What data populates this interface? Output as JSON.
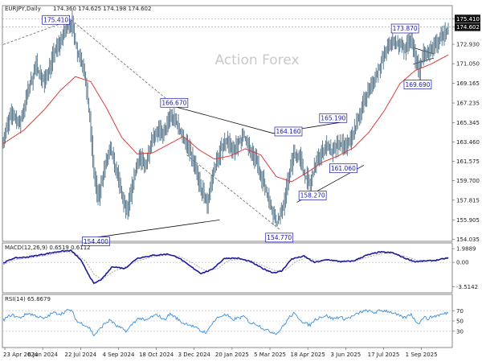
{
  "chart_data": {
    "type": "line",
    "watermark": "Action Forex",
    "header": {
      "symbol_timeframe": "EURJPY,Daily",
      "ohlc": "174.360 174.625 174.198 174.602"
    },
    "x_tick_labels": [
      "23 Apr 2024",
      "6 Jun 2024",
      "22 Jul 2024",
      "4 Sep 2024",
      "18 Oct 2024",
      "3 Dec 2024",
      "20 Jan 2025",
      "5 Mar 2025",
      "18 Apr 2025",
      "3 Jun 2025",
      "17 Jul 2025",
      "1 Sep 2025"
    ],
    "price_panel": {
      "ylim": [
        153.9,
        176.6
      ],
      "y_tick_labels": [
        "175.410",
        "174.602",
        "172.930",
        "171.050",
        "169.165",
        "167.235",
        "165.345",
        "163.460",
        "161.575",
        "159.700",
        "157.815",
        "155.905",
        "154.035"
      ],
      "y_ticks": [
        175.41,
        174.602,
        172.93,
        171.05,
        169.165,
        167.235,
        165.345,
        163.46,
        161.575,
        159.7,
        157.815,
        155.905,
        154.035
      ],
      "highlighted_levels": [
        175.41,
        174.602
      ],
      "annotations": [
        {
          "text": "175.410",
          "bar": 66,
          "value": 175.41
        },
        {
          "text": "154.400",
          "bar": 90,
          "value": 154.4
        },
        {
          "text": "166.670",
          "bar": 166,
          "value": 166.67
        },
        {
          "text": "164.160",
          "bar": 262,
          "value": 164.16
        },
        {
          "text": "154.770",
          "bar": 268,
          "value": 154.77
        },
        {
          "text": "158.270",
          "bar": 298,
          "value": 158.27
        },
        {
          "text": "165.190",
          "bar": 318,
          "value": 165.19
        },
        {
          "text": "161.060",
          "bar": 320,
          "value": 161.06
        },
        {
          "text": "173.870",
          "bar": 390,
          "value": 173.87
        },
        {
          "text": "169.690",
          "bar": 400,
          "value": 169.69
        }
      ],
      "close_key_points": [
        [
          0,
          163.8
        ],
        [
          8,
          166.2
        ],
        [
          16,
          165.1
        ],
        [
          24,
          168.4
        ],
        [
          32,
          170.9
        ],
        [
          40,
          169.2
        ],
        [
          48,
          171.8
        ],
        [
          56,
          173.4
        ],
        [
          62,
          174.6
        ],
        [
          66,
          175.1
        ],
        [
          72,
          172.2
        ],
        [
          78,
          170.8
        ],
        [
          84,
          165.6
        ],
        [
          88,
          160.4
        ],
        [
          92,
          157.9
        ],
        [
          98,
          160.9
        ],
        [
          104,
          162.6
        ],
        [
          110,
          160.6
        ],
        [
          116,
          157.8
        ],
        [
          120,
          156.6
        ],
        [
          126,
          159.6
        ],
        [
          132,
          162.1
        ],
        [
          138,
          161.0
        ],
        [
          144,
          163.9
        ],
        [
          150,
          164.6
        ],
        [
          156,
          164.1
        ],
        [
          162,
          166.1
        ],
        [
          168,
          165.4
        ],
        [
          174,
          163.9
        ],
        [
          180,
          162.9
        ],
        [
          186,
          161.1
        ],
        [
          192,
          158.9
        ],
        [
          198,
          157.4
        ],
        [
          202,
          159.7
        ],
        [
          208,
          161.9
        ],
        [
          214,
          163.4
        ],
        [
          218,
          163.7
        ],
        [
          222,
          162.4
        ],
        [
          228,
          163.4
        ],
        [
          234,
          164.0
        ],
        [
          240,
          162.4
        ],
        [
          246,
          161.6
        ],
        [
          252,
          159.6
        ],
        [
          258,
          157.9
        ],
        [
          262,
          156.4
        ],
        [
          266,
          155.6
        ],
        [
          270,
          156.6
        ],
        [
          274,
          158.4
        ],
        [
          278,
          160.6
        ],
        [
          282,
          162.4
        ],
        [
          288,
          161.9
        ],
        [
          292,
          160.4
        ],
        [
          298,
          159.2
        ],
        [
          302,
          160.9
        ],
        [
          308,
          162.4
        ],
        [
          314,
          163.1
        ],
        [
          320,
          162.4
        ],
        [
          326,
          163.4
        ],
        [
          332,
          162.9
        ],
        [
          338,
          163.9
        ],
        [
          342,
          164.9
        ],
        [
          348,
          166.9
        ],
        [
          354,
          168.4
        ],
        [
          360,
          169.4
        ],
        [
          366,
          170.9
        ],
        [
          372,
          172.4
        ],
        [
          378,
          173.2
        ],
        [
          384,
          172.9
        ],
        [
          390,
          172.4
        ],
        [
          396,
          173.6
        ],
        [
          400,
          171.6
        ],
        [
          404,
          170.4
        ],
        [
          408,
          172.1
        ],
        [
          412,
          171.9
        ],
        [
          416,
          172.4
        ],
        [
          420,
          172.9
        ],
        [
          424,
          173.4
        ],
        [
          428,
          174.0
        ],
        [
          432,
          174.6
        ]
      ],
      "ma_key_points": [
        [
          0,
          163.3
        ],
        [
          20,
          164.6
        ],
        [
          40,
          166.6
        ],
        [
          55,
          168.4
        ],
        [
          70,
          169.8
        ],
        [
          85,
          169.3
        ],
        [
          100,
          166.8
        ],
        [
          115,
          163.9
        ],
        [
          130,
          162.3
        ],
        [
          145,
          162.4
        ],
        [
          160,
          163.2
        ],
        [
          175,
          164.0
        ],
        [
          190,
          162.7
        ],
        [
          205,
          161.8
        ],
        [
          220,
          162.1
        ],
        [
          235,
          162.8
        ],
        [
          250,
          162.2
        ],
        [
          265,
          160.1
        ],
        [
          280,
          159.6
        ],
        [
          295,
          160.5
        ],
        [
          310,
          161.5
        ],
        [
          325,
          162.1
        ],
        [
          340,
          162.9
        ],
        [
          355,
          164.4
        ],
        [
          370,
          166.5
        ],
        [
          385,
          169.1
        ],
        [
          400,
          170.4
        ],
        [
          415,
          171.0
        ],
        [
          432,
          171.9
        ]
      ],
      "trendlines": [
        {
          "from": [
            90,
            154.2
          ],
          "to": [
            210,
            155.9
          ]
        },
        {
          "from": [
            166,
            166.9
          ],
          "to": [
            262,
            164.3
          ]
        },
        {
          "from": [
            262,
            164.3
          ],
          "to": [
            330,
            165.4
          ]
        },
        {
          "from": [
            285,
            157.6
          ],
          "to": [
            350,
            161.2
          ]
        },
        {
          "from": [
            66,
            175.3
          ],
          "to": [
            166,
            167.0
          ]
        },
        {
          "from": [
            0,
            172.9
          ],
          "to": [
            66,
            175.3
          ]
        },
        {
          "from": [
            178,
            162.2
          ],
          "to": [
            268,
            155.0
          ]
        },
        {
          "from": [
            398,
            172.6
          ],
          "to": [
            418,
            172.0
          ]
        },
        {
          "from": [
            398,
            171.0
          ],
          "to": [
            418,
            171.6
          ]
        }
      ]
    },
    "macd_panel": {
      "label": "MACD(12,26,9) 0.6519 0.6112",
      "ylim": [
        -4.3,
        2.7
      ],
      "y_tick_labels": [
        "1.9889",
        "0.00",
        "-3.5142"
      ],
      "y_ticks": [
        1.9889,
        0.0,
        -3.5142
      ],
      "main_key_points": [
        [
          0,
          -0.1
        ],
        [
          10,
          0.6
        ],
        [
          25,
          0.8
        ],
        [
          40,
          1.2
        ],
        [
          55,
          1.6
        ],
        [
          66,
          1.7
        ],
        [
          75,
          0.4
        ],
        [
          82,
          -1.5
        ],
        [
          88,
          -3.1
        ],
        [
          96,
          -2.4
        ],
        [
          106,
          -0.6
        ],
        [
          118,
          -0.9
        ],
        [
          130,
          0.6
        ],
        [
          145,
          1.0
        ],
        [
          160,
          1.2
        ],
        [
          170,
          0.7
        ],
        [
          180,
          -0.4
        ],
        [
          192,
          -1.6
        ],
        [
          202,
          -1.1
        ],
        [
          215,
          0.6
        ],
        [
          228,
          0.6
        ],
        [
          240,
          0.1
        ],
        [
          252,
          -0.9
        ],
        [
          262,
          -1.5
        ],
        [
          270,
          -1.3
        ],
        [
          280,
          0.5
        ],
        [
          292,
          0.9
        ],
        [
          302,
          0.0
        ],
        [
          315,
          0.4
        ],
        [
          328,
          0.1
        ],
        [
          340,
          0.2
        ],
        [
          352,
          1.0
        ],
        [
          365,
          1.5
        ],
        [
          378,
          1.4
        ],
        [
          390,
          0.6
        ],
        [
          400,
          0.1
        ],
        [
          410,
          0.2
        ],
        [
          420,
          0.3
        ],
        [
          432,
          0.65
        ]
      ],
      "signal_key_points": [
        [
          0,
          -0.3
        ],
        [
          12,
          0.4
        ],
        [
          28,
          0.7
        ],
        [
          45,
          1.1
        ],
        [
          60,
          1.5
        ],
        [
          70,
          1.3
        ],
        [
          80,
          0.2
        ],
        [
          88,
          -1.7
        ],
        [
          96,
          -2.5
        ],
        [
          106,
          -1.4
        ],
        [
          118,
          -0.7
        ],
        [
          130,
          0.2
        ],
        [
          145,
          0.8
        ],
        [
          162,
          1.1
        ],
        [
          172,
          0.8
        ],
        [
          184,
          -0.1
        ],
        [
          196,
          -1.2
        ],
        [
          208,
          -0.9
        ],
        [
          218,
          0.2
        ],
        [
          230,
          0.5
        ],
        [
          242,
          0.2
        ],
        [
          254,
          -0.6
        ],
        [
          264,
          -1.2
        ],
        [
          274,
          -1.1
        ],
        [
          284,
          0.1
        ],
        [
          294,
          0.7
        ],
        [
          305,
          0.3
        ],
        [
          318,
          0.3
        ],
        [
          330,
          0.15
        ],
        [
          342,
          0.2
        ],
        [
          355,
          0.8
        ],
        [
          368,
          1.3
        ],
        [
          380,
          1.3
        ],
        [
          392,
          0.8
        ],
        [
          402,
          0.3
        ],
        [
          412,
          0.2
        ],
        [
          422,
          0.3
        ],
        [
          432,
          0.61
        ]
      ]
    },
    "rsi_panel": {
      "label": "RSI(14) 65.8679",
      "ylim": [
        0,
        100
      ],
      "y_tick_labels": [
        "70",
        "50",
        "30"
      ],
      "y_ticks": [
        70,
        50,
        30
      ],
      "key_points": [
        [
          0,
          52
        ],
        [
          8,
          62
        ],
        [
          16,
          56
        ],
        [
          24,
          65
        ],
        [
          32,
          60
        ],
        [
          40,
          54
        ],
        [
          48,
          66
        ],
        [
          56,
          64
        ],
        [
          62,
          70
        ],
        [
          66,
          71
        ],
        [
          72,
          48
        ],
        [
          78,
          44
        ],
        [
          84,
          36
        ],
        [
          88,
          22
        ],
        [
          92,
          30
        ],
        [
          98,
          44
        ],
        [
          104,
          52
        ],
        [
          110,
          40
        ],
        [
          116,
          34
        ],
        [
          120,
          30
        ],
        [
          126,
          46
        ],
        [
          132,
          56
        ],
        [
          138,
          50
        ],
        [
          144,
          58
        ],
        [
          150,
          62
        ],
        [
          156,
          52
        ],
        [
          162,
          64
        ],
        [
          168,
          56
        ],
        [
          174,
          46
        ],
        [
          180,
          44
        ],
        [
          186,
          38
        ],
        [
          192,
          30
        ],
        [
          198,
          28
        ],
        [
          202,
          44
        ],
        [
          208,
          56
        ],
        [
          214,
          62
        ],
        [
          218,
          60
        ],
        [
          222,
          52
        ],
        [
          228,
          56
        ],
        [
          234,
          58
        ],
        [
          240,
          46
        ],
        [
          246,
          44
        ],
        [
          252,
          36
        ],
        [
          258,
          30
        ],
        [
          262,
          28
        ],
        [
          266,
          26
        ],
        [
          270,
          36
        ],
        [
          274,
          46
        ],
        [
          278,
          58
        ],
        [
          282,
          64
        ],
        [
          288,
          54
        ],
        [
          292,
          46
        ],
        [
          298,
          42
        ],
        [
          302,
          52
        ],
        [
          308,
          58
        ],
        [
          314,
          60
        ],
        [
          320,
          54
        ],
        [
          326,
          58
        ],
        [
          332,
          54
        ],
        [
          338,
          58
        ],
        [
          342,
          62
        ],
        [
          348,
          68
        ],
        [
          354,
          70
        ],
        [
          360,
          66
        ],
        [
          366,
          70
        ],
        [
          372,
          70
        ],
        [
          378,
          66
        ],
        [
          384,
          60
        ],
        [
          390,
          56
        ],
        [
          396,
          64
        ],
        [
          400,
          50
        ],
        [
          404,
          46
        ],
        [
          408,
          58
        ],
        [
          412,
          54
        ],
        [
          416,
          58
        ],
        [
          420,
          60
        ],
        [
          424,
          62
        ],
        [
          428,
          64
        ],
        [
          432,
          65.9
        ]
      ]
    }
  }
}
